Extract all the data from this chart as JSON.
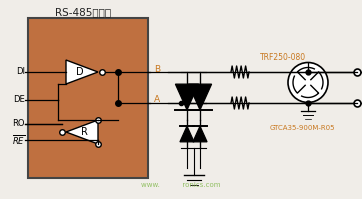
{
  "bg_color": "#f0ede8",
  "ic_box_color": "#bf7040",
  "ic_box_edge": "#444444",
  "wire_color": "#000000",
  "component_color": "#000000",
  "orange_color": "#c87820",
  "watermark_color": "#88bb55",
  "title_text": "RS-485收发器",
  "title_fontsize": 7.5,
  "trf_label": "TRF250-080",
  "gtca_label": "GTCA35-900M-R05",
  "watermark_text": "www.          ronics.com"
}
